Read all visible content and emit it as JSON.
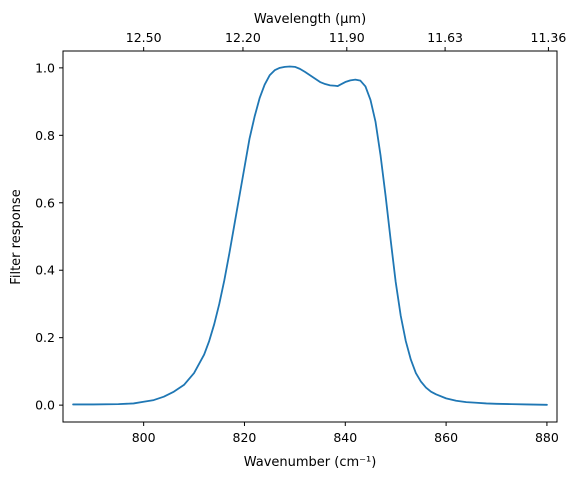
{
  "chart_data": {
    "type": "line",
    "title": "",
    "xlabel": "Wavenumber (cm⁻¹)",
    "ylabel": "Filter response",
    "secondary_xlabel": "Wavelength (μm)",
    "xlim": [
      784,
      882
    ],
    "ylim": [
      -0.05,
      1.05
    ],
    "grid": false,
    "legend": "none",
    "x_ticks": [
      800,
      820,
      840,
      860,
      880
    ],
    "x_tick_labels": [
      "800",
      "820",
      "840",
      "860",
      "880"
    ],
    "y_ticks": [
      0.0,
      0.2,
      0.4,
      0.6,
      0.8,
      1.0
    ],
    "y_tick_labels": [
      "0.0",
      "0.2",
      "0.4",
      "0.6",
      "0.8",
      "1.0"
    ],
    "top_ticks_wavenumber": [
      800.0,
      819.7,
      840.3,
      859.8,
      880.3
    ],
    "top_tick_labels": [
      "12.50",
      "12.20",
      "11.90",
      "11.63",
      "11.36"
    ],
    "series": [
      {
        "color": "#1f77b4",
        "x": [
          786,
          790,
          795,
          798,
          800,
          802,
          804,
          806,
          808,
          810,
          812,
          813,
          814,
          815,
          816,
          817,
          818,
          819,
          820,
          821,
          822,
          823,
          824,
          825,
          826,
          827,
          828,
          829,
          830,
          831,
          832,
          833,
          834,
          835,
          836,
          837,
          838,
          838.5,
          839,
          840,
          841,
          842,
          843,
          844,
          845,
          846,
          847,
          848,
          849,
          850,
          851,
          852,
          853,
          854,
          855,
          856,
          857,
          858,
          860,
          862,
          864,
          866,
          868,
          870,
          873,
          876,
          880
        ],
        "y": [
          0.002,
          0.002,
          0.003,
          0.005,
          0.01,
          0.015,
          0.025,
          0.04,
          0.06,
          0.095,
          0.15,
          0.19,
          0.24,
          0.3,
          0.37,
          0.45,
          0.535,
          0.62,
          0.705,
          0.79,
          0.855,
          0.91,
          0.95,
          0.978,
          0.993,
          1.0,
          1.003,
          1.004,
          1.003,
          0.997,
          0.988,
          0.978,
          0.968,
          0.958,
          0.952,
          0.948,
          0.947,
          0.946,
          0.95,
          0.958,
          0.963,
          0.965,
          0.962,
          0.945,
          0.905,
          0.84,
          0.74,
          0.62,
          0.49,
          0.365,
          0.265,
          0.19,
          0.135,
          0.095,
          0.07,
          0.052,
          0.04,
          0.032,
          0.02,
          0.013,
          0.009,
          0.007,
          0.005,
          0.004,
          0.003,
          0.002,
          0.001
        ]
      }
    ]
  }
}
